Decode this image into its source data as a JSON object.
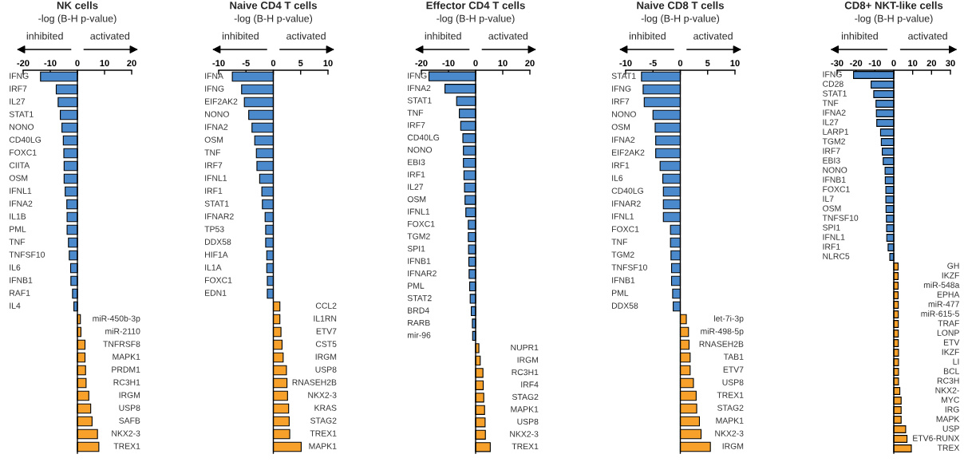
{
  "chart_data": [
    {
      "type": "bar",
      "orientation": "horizontal",
      "title": "NK cells",
      "xlabel": "-log (B-H p-value)",
      "annotations": [
        "inhibited",
        "activated"
      ],
      "xlim": [
        -20,
        20
      ],
      "xticks": [
        -20,
        -10,
        0,
        10,
        20
      ],
      "categories": [
        "IFNG",
        "IRF7",
        "IL27",
        "STAT1",
        "NONO",
        "CD40LG",
        "FOXC1",
        "CIITA",
        "OSM",
        "IFNL1",
        "IFNA2",
        "IL1B",
        "PML",
        "TNF",
        "TNFSF10",
        "IL6",
        "IFNB1",
        "RAF1",
        "IL4",
        "miR-450b-3p",
        "miR-2110",
        "TNFRSF8",
        "MAPK1",
        "PRDM1",
        "RC3H1",
        "IRGM",
        "USP8",
        "SAFB",
        "NKX2-3",
        "TREX1"
      ],
      "values": [
        -13.6,
        -7.8,
        -7.1,
        -6.3,
        -5.7,
        -5.2,
        -5.0,
        -4.9,
        -4.9,
        -4.5,
        -3.9,
        -3.8,
        -3.8,
        -3.3,
        -3.0,
        -2.5,
        -2.4,
        -1.8,
        -1.3,
        1.1,
        1.3,
        2.8,
        2.8,
        3.0,
        3.2,
        4.2,
        4.9,
        5.4,
        7.4,
        7.9
      ],
      "colors": [
        "#4a89cc",
        "#4a89cc",
        "#4a89cc",
        "#4a89cc",
        "#4a89cc",
        "#4a89cc",
        "#4a89cc",
        "#4a89cc",
        "#4a89cc",
        "#4a89cc",
        "#4a89cc",
        "#4a89cc",
        "#4a89cc",
        "#4a89cc",
        "#4a89cc",
        "#4a89cc",
        "#4a89cc",
        "#4a89cc",
        "#4a89cc",
        "#f7a12b",
        "#f7a12b",
        "#f7a12b",
        "#f7a12b",
        "#f7a12b",
        "#f7a12b",
        "#f7a12b",
        "#f7a12b",
        "#f7a12b",
        "#f7a12b",
        "#f7a12b"
      ]
    },
    {
      "type": "bar",
      "orientation": "horizontal",
      "title": "Naive CD4 T cells",
      "xlabel": "-log (B-H p-value)",
      "annotations": [
        "inhibited",
        "activated"
      ],
      "xlim": [
        -10,
        10
      ],
      "xticks": [
        -10,
        -5,
        0,
        5,
        10
      ],
      "categories": [
        "IFNA",
        "IFNG",
        "EIF2AK2",
        "NONO",
        "IFNA2",
        "OSM",
        "TNF",
        "IRF7",
        "IFNL1",
        "IRF1",
        "STAT1",
        "IFNAR2",
        "TP53",
        "DDX58",
        "HIF1A",
        "IL1A",
        "FOXC1",
        "EDN1",
        "CCL2",
        "IL1RN",
        "ETV7",
        "CST5",
        "IRGM",
        "USP8",
        "RNASEH2B",
        "NKX2-3",
        "KRAS",
        "STAG2",
        "TREX1",
        "MAPK1"
      ],
      "values": [
        -7.5,
        -5.8,
        -5.3,
        -4.5,
        -3.9,
        -3.4,
        -3.1,
        -3.0,
        -2.5,
        -2.1,
        -2.0,
        -1.5,
        -1.4,
        -1.4,
        -1.2,
        -1.2,
        -1.1,
        -1.1,
        1.2,
        1.2,
        1.4,
        1.6,
        1.8,
        2.4,
        2.5,
        2.6,
        2.8,
        2.9,
        3.0,
        5.1
      ],
      "colors": [
        "#4a89cc",
        "#4a89cc",
        "#4a89cc",
        "#4a89cc",
        "#4a89cc",
        "#4a89cc",
        "#4a89cc",
        "#4a89cc",
        "#4a89cc",
        "#4a89cc",
        "#4a89cc",
        "#4a89cc",
        "#4a89cc",
        "#4a89cc",
        "#4a89cc",
        "#4a89cc",
        "#4a89cc",
        "#4a89cc",
        "#f7a12b",
        "#f7a12b",
        "#f7a12b",
        "#f7a12b",
        "#f7a12b",
        "#f7a12b",
        "#f7a12b",
        "#f7a12b",
        "#f7a12b",
        "#f7a12b",
        "#f7a12b",
        "#f7a12b"
      ]
    },
    {
      "type": "bar",
      "orientation": "horizontal",
      "title": "Effector CD4 T cells",
      "xlabel": "-log (B-H p-value)",
      "annotations": [
        "inhibited",
        "activated"
      ],
      "xlim": [
        -20,
        20
      ],
      "xticks": [
        -20,
        -10,
        0,
        10,
        20
      ],
      "categories": [
        "IFNG",
        "IFNA2",
        "STAT1",
        "TNF",
        "IRF7",
        "CD40LG",
        "NONO",
        "EBI3",
        "IRF1",
        "IL27",
        "OSM",
        "IFNL1",
        "FOXC1",
        "TGM2",
        "SPI1",
        "IFNB1",
        "IFNAR2",
        "PML",
        "STAT2",
        "BRD4",
        "RARB",
        "mir-96",
        "NUPR1",
        "IRGM",
        "RC3H1",
        "IRF4",
        "STAG2",
        "MAPK1",
        "USP8",
        "NKX2-3",
        "TREX1"
      ],
      "values": [
        -17.2,
        -11.3,
        -7.0,
        -6.0,
        -5.5,
        -4.7,
        -4.5,
        -4.5,
        -4.3,
        -4.1,
        -3.9,
        -3.6,
        -2.7,
        -2.7,
        -2.6,
        -2.5,
        -2.4,
        -2.2,
        -2.0,
        -1.6,
        -1.2,
        -1.1,
        1.2,
        1.7,
        2.7,
        2.8,
        3.0,
        3.3,
        3.5,
        3.6,
        5.4
      ],
      "colors": [
        "#4a89cc",
        "#4a89cc",
        "#4a89cc",
        "#4a89cc",
        "#4a89cc",
        "#4a89cc",
        "#4a89cc",
        "#4a89cc",
        "#4a89cc",
        "#4a89cc",
        "#4a89cc",
        "#4a89cc",
        "#4a89cc",
        "#4a89cc",
        "#4a89cc",
        "#4a89cc",
        "#4a89cc",
        "#4a89cc",
        "#4a89cc",
        "#4a89cc",
        "#4a89cc",
        "#4a89cc",
        "#f7a12b",
        "#f7a12b",
        "#f7a12b",
        "#f7a12b",
        "#f7a12b",
        "#f7a12b",
        "#f7a12b",
        "#f7a12b",
        "#f7a12b"
      ]
    },
    {
      "type": "bar",
      "orientation": "horizontal",
      "title": "Naive CD8 T cells",
      "xlabel": "-log (B-H p-value)",
      "annotations": [
        "inhibited",
        "activated"
      ],
      "xlim": [
        -10,
        10
      ],
      "xticks": [
        -10,
        -5,
        0,
        5,
        10
      ],
      "categories": [
        "STAT1",
        "IFNG",
        "IRF7",
        "NONO",
        "OSM",
        "IFNA2",
        "EIF2AK2",
        "IRF1",
        "IL6",
        "CD40LG",
        "IFNAR2",
        "IFNL1",
        "FOXC1",
        "TNF",
        "TGM2",
        "TNFSF10",
        "IFNB1",
        "PML",
        "DDX58",
        "let-7i-3p",
        "miR-498-5p",
        "RNASEH2B",
        "TAB1",
        "ETV7",
        "USP8",
        "TREX1",
        "STAG2",
        "MAPK1",
        "NKX2-3",
        "IRGM"
      ],
      "values": [
        -7.1,
        -6.8,
        -6.6,
        -5.0,
        -4.6,
        -4.5,
        -4.5,
        -3.7,
        -3.2,
        -3.1,
        -3.1,
        -3.1,
        -1.8,
        -1.8,
        -1.7,
        -1.6,
        -1.6,
        -1.4,
        -1.3,
        1.1,
        1.5,
        1.6,
        1.8,
        1.8,
        2.4,
        2.9,
        3.0,
        3.5,
        3.8,
        5.5
      ],
      "colors": [
        "#4a89cc",
        "#4a89cc",
        "#4a89cc",
        "#4a89cc",
        "#4a89cc",
        "#4a89cc",
        "#4a89cc",
        "#4a89cc",
        "#4a89cc",
        "#4a89cc",
        "#4a89cc",
        "#4a89cc",
        "#4a89cc",
        "#4a89cc",
        "#4a89cc",
        "#4a89cc",
        "#4a89cc",
        "#4a89cc",
        "#4a89cc",
        "#f7a12b",
        "#f7a12b",
        "#f7a12b",
        "#f7a12b",
        "#f7a12b",
        "#f7a12b",
        "#f7a12b",
        "#f7a12b",
        "#f7a12b",
        "#f7a12b",
        "#f7a12b"
      ]
    },
    {
      "type": "bar",
      "orientation": "horizontal",
      "title": "CD8+ NKT-like cells",
      "xlabel": "-log (B-H p-value)",
      "annotations": [
        "inhibited",
        "activated"
      ],
      "xlim": [
        -30,
        30
      ],
      "xticks": [
        -30,
        -20,
        -10,
        0,
        10,
        20,
        30
      ],
      "categories": [
        "IFNG",
        "CD28",
        "STAT1",
        "TNF",
        "IFNA2",
        "IL27",
        "LARP1",
        "TGM2",
        "IRF7",
        "EBI3",
        "NONO",
        "IFNB1",
        "FOXC1",
        "IL7",
        "OSM",
        "TNFSF10",
        "SPI1",
        "IFNL1",
        "IRF1",
        "NLRC5",
        "GH",
        "IKZF",
        "miR-548a",
        "EPHA",
        "miR-477",
        "miR-615-5",
        "TRAF",
        "LONP",
        "ETV",
        "IKZF",
        "LI",
        "BCL",
        "RC3H",
        "NKX2-",
        "MYC",
        "IRG",
        "MAPK",
        "USP",
        "ETV6-RUNX",
        "TREX"
      ],
      "values": [
        -21.3,
        -12.0,
        -10.6,
        -9.4,
        -9.2,
        -9.0,
        -7.0,
        -6.6,
        -6.1,
        -5.6,
        -4.6,
        -4.5,
        -4.2,
        -4.2,
        -4.1,
        -3.9,
        -3.8,
        -3.7,
        -3.0,
        -2.1,
        2.3,
        2.3,
        2.3,
        2.3,
        2.4,
        2.4,
        2.4,
        2.4,
        2.4,
        2.5,
        2.5,
        2.5,
        2.5,
        3.2,
        3.9,
        3.9,
        3.9,
        6.3,
        7.0,
        9.3
      ],
      "colors": [
        "#4a89cc",
        "#4a89cc",
        "#4a89cc",
        "#4a89cc",
        "#4a89cc",
        "#4a89cc",
        "#4a89cc",
        "#4a89cc",
        "#4a89cc",
        "#4a89cc",
        "#4a89cc",
        "#4a89cc",
        "#4a89cc",
        "#4a89cc",
        "#4a89cc",
        "#4a89cc",
        "#4a89cc",
        "#4a89cc",
        "#4a89cc",
        "#4a89cc",
        "#f7a12b",
        "#f7a12b",
        "#f7a12b",
        "#f7a12b",
        "#f7a12b",
        "#f7a12b",
        "#f7a12b",
        "#f7a12b",
        "#f7a12b",
        "#f7a12b",
        "#f7a12b",
        "#f7a12b",
        "#f7a12b",
        "#f7a12b",
        "#f7a12b",
        "#f7a12b",
        "#f7a12b",
        "#f7a12b",
        "#f7a12b",
        "#f7a12b"
      ]
    }
  ]
}
